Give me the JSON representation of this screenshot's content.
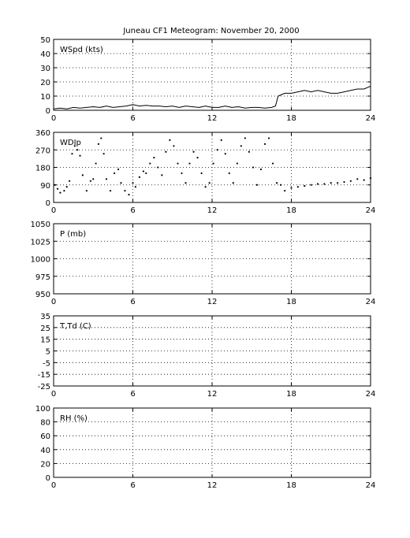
{
  "title": "Juneau CF1 Meteogram:  November 20, 2000",
  "chart_data": [
    {
      "type": "line",
      "panel_label": "WSpd (kts)",
      "ylim": [
        0,
        50
      ],
      "yticks": [
        0,
        10,
        20,
        30,
        40,
        50
      ],
      "xlim": [
        0,
        24
      ],
      "xticks": [
        0,
        6,
        12,
        18,
        24
      ],
      "grid": true,
      "series": [
        {
          "x": [
            0,
            0.5,
            1,
            1.5,
            2,
            2.5,
            3,
            3.5,
            4,
            4.5,
            5,
            5.5,
            6,
            6.5,
            7,
            7.5,
            8,
            8.5,
            9,
            9.5,
            10,
            10.5,
            11,
            11.5,
            12,
            12.5,
            13,
            13.5,
            14,
            14.5,
            15,
            15.5,
            16,
            16.5,
            16.8,
            17,
            17.5,
            18,
            18.5,
            19,
            19.5,
            20,
            20.5,
            21,
            21.5,
            22,
            22.5,
            23,
            23.5,
            24
          ],
          "values": [
            1,
            1.5,
            1,
            2,
            1.5,
            2,
            2.5,
            2,
            3,
            2,
            2.5,
            3,
            4,
            3,
            3.5,
            3,
            3,
            2.5,
            3,
            2,
            3,
            2.5,
            2,
            3,
            2,
            2,
            3,
            2,
            2.5,
            1.5,
            2,
            2,
            1.5,
            2,
            3,
            10,
            12,
            12,
            13,
            14,
            13,
            14,
            13,
            12,
            12,
            13,
            14,
            15,
            15,
            17
          ]
        }
      ]
    },
    {
      "type": "scatter",
      "panel_label": "WDIp",
      "ylim": [
        0,
        360
      ],
      "yticks": [
        0,
        90,
        180,
        270,
        360
      ],
      "xlim": [
        0,
        24
      ],
      "xticks": [
        0,
        6,
        12,
        18,
        24
      ],
      "grid": true,
      "series": [
        {
          "x": [
            0.1,
            0.3,
            0.5,
            0.8,
            1,
            1.2,
            1.4,
            1.6,
            1.8,
            2,
            2.2,
            2.5,
            2.8,
            3,
            3.2,
            3.4,
            3.6,
            3.8,
            4,
            4.3,
            4.6,
            4.9,
            5.1,
            5.4,
            5.7,
            6,
            6.2,
            6.5,
            6.8,
            7,
            7.3,
            7.6,
            7.9,
            8.2,
            8.5,
            8.8,
            9.1,
            9.4,
            9.7,
            10,
            10.3,
            10.6,
            10.9,
            11.2,
            11.5,
            11.8,
            12.1,
            12.4,
            12.7,
            13,
            13.3,
            13.6,
            13.9,
            14.2,
            14.5,
            14.8,
            15.1,
            15.4,
            15.7,
            16,
            16.3,
            16.6,
            16.9,
            17.2,
            17.5,
            18,
            18.5,
            19,
            19.5,
            20,
            20.5,
            21,
            21.5,
            22,
            22.5,
            23,
            23.5,
            24
          ],
          "values": [
            90,
            70,
            50,
            60,
            80,
            110,
            250,
            290,
            270,
            240,
            140,
            60,
            110,
            120,
            200,
            300,
            330,
            250,
            120,
            60,
            150,
            170,
            100,
            60,
            40,
            100,
            80,
            130,
            160,
            150,
            200,
            230,
            180,
            140,
            260,
            320,
            290,
            200,
            150,
            100,
            200,
            260,
            230,
            150,
            80,
            100,
            200,
            270,
            320,
            250,
            150,
            100,
            200,
            290,
            330,
            260,
            180,
            90,
            170,
            300,
            330,
            200,
            100,
            90,
            60,
            75,
            80,
            85,
            90,
            95,
            95,
            100,
            100,
            105,
            110,
            120,
            115,
            125
          ]
        }
      ]
    },
    {
      "type": "line",
      "panel_label": "P (mb)",
      "ylim": [
        950,
        1050
      ],
      "yticks": [
        950,
        975,
        1000,
        1025,
        1050
      ],
      "xlim": [
        0,
        24
      ],
      "xticks": [
        0,
        6,
        12,
        18,
        24
      ],
      "grid": true,
      "series": []
    },
    {
      "type": "line",
      "panel_label": "T,Td (C)",
      "ylim": [
        -25,
        35
      ],
      "yticks": [
        -25,
        -15,
        -5,
        5,
        15,
        25,
        35
      ],
      "extra_tick_labels": [
        "-25",
        "-15",
        "-5",
        "5",
        "15",
        "25",
        "35"
      ],
      "xlim": [
        0,
        24
      ],
      "xticks": [
        0,
        6,
        12,
        18,
        24
      ],
      "grid": true,
      "series": []
    },
    {
      "type": "line",
      "panel_label": "RH (%)",
      "ylim": [
        0,
        100
      ],
      "yticks": [
        0,
        20,
        40,
        60,
        80,
        100
      ],
      "xlim": [
        0,
        24
      ],
      "xticks": [
        0,
        6,
        12,
        18,
        24
      ],
      "grid": true,
      "series": []
    }
  ]
}
